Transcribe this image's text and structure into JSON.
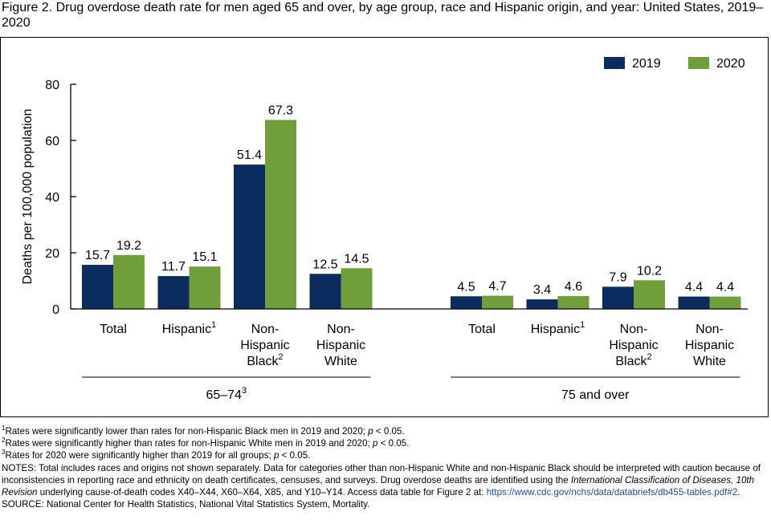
{
  "title": "Figure 2. Drug overdose death rate for men aged 65 and over, by age group, race and Hispanic origin, and year: United States, 2019–2020",
  "colors": {
    "2019": "#0b2c5e",
    "2020": "#6f9e3a"
  },
  "chart_data": {
    "type": "bar",
    "ylabel": "Deaths per 100,000 population",
    "ylim": [
      0,
      80
    ],
    "yticks": [
      "0",
      "20",
      "40",
      "60",
      "80"
    ],
    "legend_position": "top-right",
    "series": [
      {
        "name": "2019",
        "color": "#0b2c5e"
      },
      {
        "name": "2020",
        "color": "#6f9e3a"
      }
    ],
    "groups": [
      {
        "label": "65–74",
        "label_sup": "3",
        "categories": [
          {
            "label": [
              "Total"
            ],
            "sup": "",
            "values": [
              15.7,
              19.2
            ],
            "value_labels": [
              "15.7",
              "19.2"
            ]
          },
          {
            "label": [
              "Hispanic"
            ],
            "sup": "1",
            "values": [
              11.7,
              15.1
            ],
            "value_labels": [
              "11.7",
              "15.1"
            ]
          },
          {
            "label": [
              "Non-",
              "Hispanic",
              "Black"
            ],
            "sup": "2",
            "values": [
              51.4,
              67.3
            ],
            "value_labels": [
              "51.4",
              "67.3"
            ]
          },
          {
            "label": [
              "Non-",
              "Hispanic",
              "White"
            ],
            "sup": "",
            "values": [
              12.5,
              14.5
            ],
            "value_labels": [
              "12.5",
              "14.5"
            ]
          }
        ]
      },
      {
        "label": "75 and over",
        "label_sup": "",
        "categories": [
          {
            "label": [
              "Total"
            ],
            "sup": "",
            "values": [
              4.5,
              4.7
            ],
            "value_labels": [
              "4.5",
              "4.7"
            ]
          },
          {
            "label": [
              "Hispanic"
            ],
            "sup": "1",
            "values": [
              3.4,
              4.6
            ],
            "value_labels": [
              "3.4",
              "4.6"
            ]
          },
          {
            "label": [
              "Non-",
              "Hispanic",
              "Black"
            ],
            "sup": "2",
            "values": [
              7.9,
              10.2
            ],
            "value_labels": [
              "7.9",
              "10.2"
            ]
          },
          {
            "label": [
              "Non-",
              "Hispanic",
              "White"
            ],
            "sup": "",
            "values": [
              4.4,
              4.4
            ],
            "value_labels": [
              "4.4",
              "4.4"
            ]
          }
        ]
      }
    ]
  },
  "footnotes": {
    "note1_sup": "1",
    "note1_a": "Rates were significantly lower than rates for non-Hispanic Black men in 2019 and 2020; ",
    "note1_p": "p",
    "note1_b": " < 0.05.",
    "note2_sup": "2",
    "note2_a": "Rates were significantly higher than rates for non-Hispanic White men in 2019 and 2020; ",
    "note2_p": "p",
    "note2_b": " < 0.05.",
    "note3_sup": "3",
    "note3_a": "Rates for 2020 were significantly higher than 2019 for all groups; ",
    "note3_p": "p",
    "note3_b": " < 0.05.",
    "notes_a": "NOTES: Total includes races and origins not shown separately. Data for categories other than non-Hispanic White and non-Hispanic Black should be interpreted with caution because of inconsistencies in reporting race and ethnicity on death certificates, censuses, and surveys. Drug overdose deaths are identified using the ",
    "notes_italic": "International Classification of Diseases, 10th Revision",
    "notes_b": " underlying cause-of-death codes X40–X44, X60–X64, X85, and Y10–Y14. Access data table for Figure 2 at: ",
    "notes_link": "https://www.cdc.gov/nchs/data/databriefs/db455-tables.pdf#2",
    "notes_end": ".",
    "source": "SOURCE: National Center for Health Statistics, National Vital Statistics System, Mortality."
  }
}
